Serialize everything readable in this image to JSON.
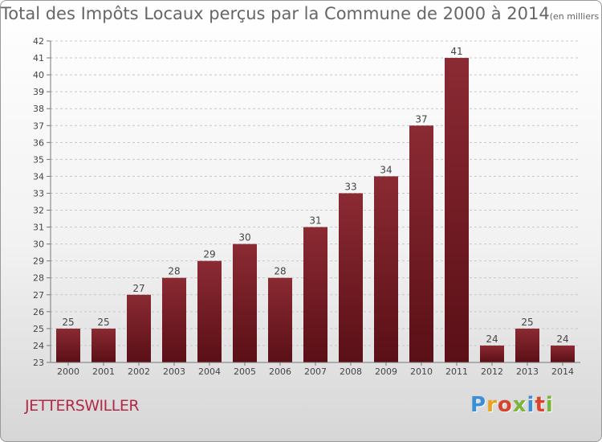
{
  "header": {
    "title": "Total des Impôts Locaux perçus par la Commune de 2000 à 2014",
    "unit": "(en milliers d'€)"
  },
  "commune": "JETTERSWILLER",
  "logo": {
    "text": "Proxiti",
    "colors": [
      "#3a8fd6",
      "#e8a21c",
      "#d7442b",
      "#7ab53a",
      "#3a8fd6",
      "#d7442b",
      "#7ab53a"
    ]
  },
  "colors": {
    "bar_top": "#8b2a33",
    "bar_bottom": "#5a0f16",
    "grid": "#c8c8c8",
    "axis": "#777777"
  },
  "chart_data": {
    "type": "bar",
    "title": "Total des Impôts Locaux perçus par la Commune de 2000 à 2014",
    "xlabel": "",
    "ylabel": "",
    "categories": [
      "2000",
      "2001",
      "2002",
      "2003",
      "2004",
      "2005",
      "2006",
      "2007",
      "2008",
      "2009",
      "2010",
      "2011",
      "2012",
      "2013",
      "2014"
    ],
    "values": [
      25,
      25,
      27,
      28,
      29,
      30,
      28,
      31,
      33,
      34,
      37,
      41,
      24,
      25,
      24
    ],
    "ylim": [
      23,
      42
    ],
    "yticks": [
      23,
      24,
      25,
      26,
      27,
      28,
      29,
      30,
      31,
      32,
      33,
      34,
      35,
      36,
      37,
      38,
      39,
      40,
      41,
      42
    ],
    "grid": true
  }
}
